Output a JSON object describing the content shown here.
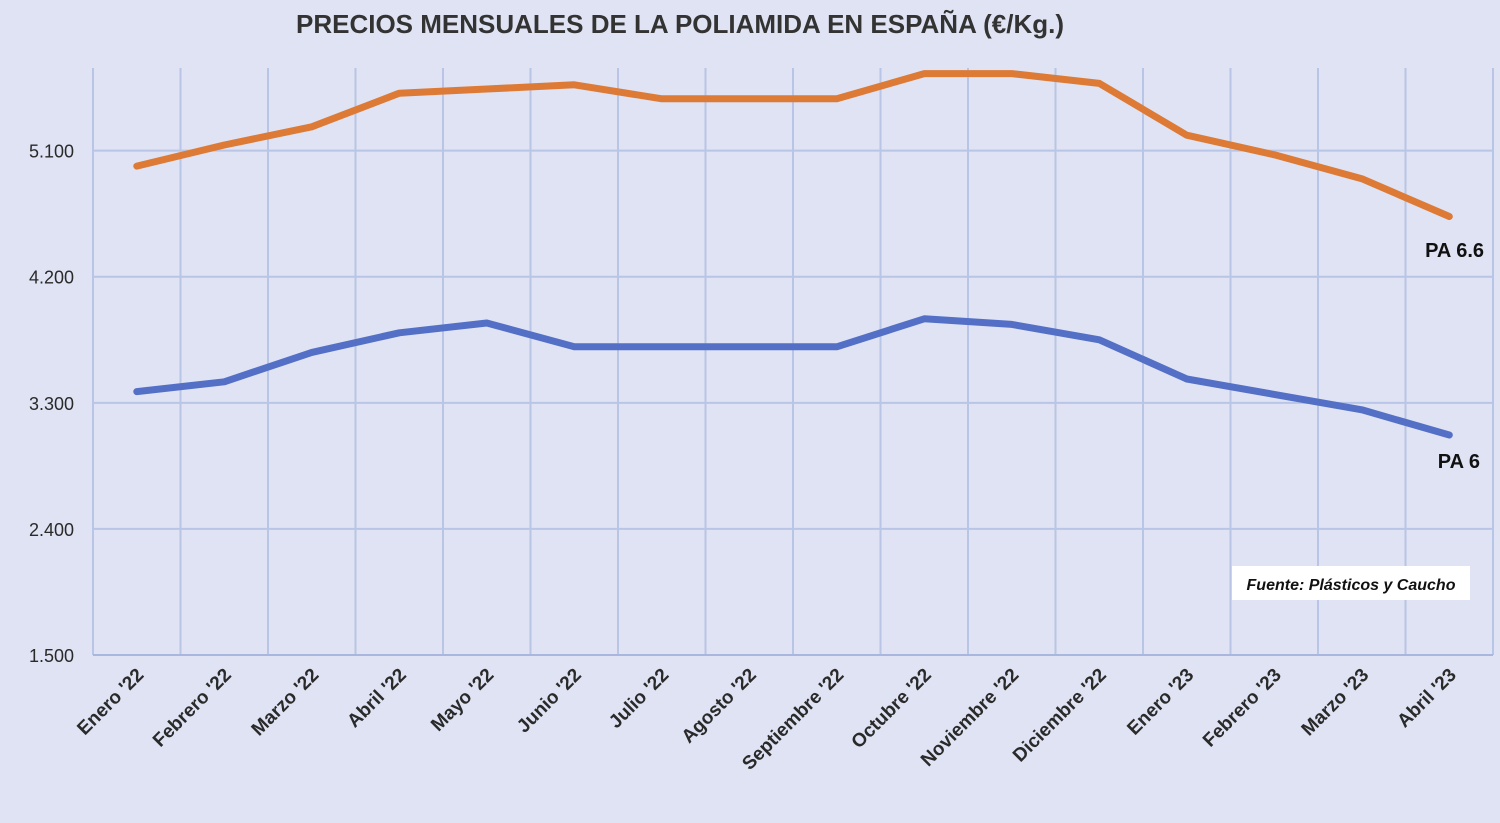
{
  "chart_data": {
    "type": "line",
    "title": "PRECIOS MENSUALES DE LA POLIAMIDA EN ESPAÑA (€/Kg.)",
    "xlabel": "",
    "ylabel": "",
    "categories": [
      "Enero '22",
      "Febrero '22",
      "Marzo '22",
      "Abril '22",
      "Mayo '22",
      "Junio '22",
      "Julio '22",
      "Agosto '22",
      "Septiembre '22",
      "Octubre '22",
      "Noviembre '22",
      "Diciembre '22",
      "Enero '23",
      "Febrero '23",
      "Marzo '23",
      "Abril '23"
    ],
    "ylim": [
      1500,
      5650
    ],
    "yticks": [
      1500,
      2400,
      3300,
      4200,
      5100
    ],
    "ytick_labels": [
      "1.500",
      "2.400",
      "3.300",
      "4.200",
      "5.100"
    ],
    "grid": true,
    "series": [
      {
        "name": "PA 6.6",
        "color": "#dd7a35",
        "values": [
          4990,
          5140,
          5270,
          5510,
          5540,
          5570,
          5470,
          5470,
          5470,
          5650,
          5650,
          5580,
          5210,
          5070,
          4900,
          4630
        ]
      },
      {
        "name": "PA 6",
        "color": "#5470c6",
        "values": [
          3380,
          3450,
          3660,
          3800,
          3870,
          3700,
          3700,
          3700,
          3700,
          3900,
          3860,
          3750,
          3470,
          3360,
          3250,
          3070
        ]
      }
    ],
    "annotations": [
      "Fuente: Plásticos y Caucho"
    ]
  },
  "colors": {
    "background": "#dfe3f3",
    "grid": "#b9c5e6",
    "axis": "#a9b7de"
  }
}
